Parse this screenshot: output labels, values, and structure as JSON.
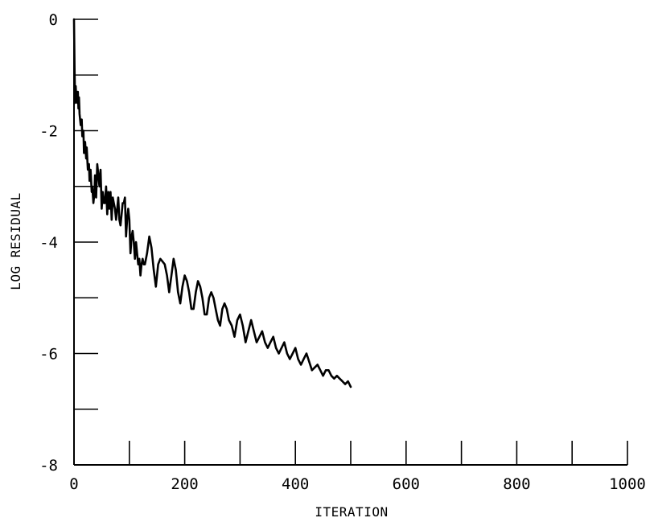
{
  "chart_data": {
    "type": "line",
    "title": "",
    "xlabel": "ITERATION",
    "ylabel": "LOG RESIDUAL",
    "xlim": [
      0,
      1000
    ],
    "ylim": [
      -8,
      0
    ],
    "grid": false,
    "x_ticks": [
      0,
      200,
      400,
      600,
      800,
      1000
    ],
    "x_tick_labels": [
      "0",
      "200",
      "400",
      "600",
      "800",
      "1000"
    ],
    "x_minor_ticks": [
      100,
      300,
      500,
      700,
      900
    ],
    "y_ticks": [
      0,
      -2,
      -4,
      -6,
      -8
    ],
    "y_tick_labels": [
      "0",
      "-2",
      "-4",
      "-6",
      "-8"
    ],
    "y_minor_ticks": [
      -1,
      -3,
      -5,
      -7
    ],
    "series": [
      {
        "color": "#000000",
        "x": [
          0,
          1,
          2,
          3,
          4,
          5,
          6,
          7,
          8,
          9,
          10,
          12,
          14,
          15,
          17,
          18,
          20,
          22,
          23,
          25,
          27,
          28,
          30,
          32,
          33,
          35,
          37,
          38,
          40,
          42,
          44,
          46,
          48,
          50,
          52,
          54,
          56,
          58,
          60,
          62,
          64,
          66,
          68,
          70,
          72,
          74,
          76,
          78,
          80,
          82,
          84,
          86,
          88,
          90,
          92,
          94,
          96,
          98,
          100,
          102,
          104,
          106,
          108,
          110,
          112,
          114,
          116,
          118,
          120,
          122,
          124,
          126,
          128,
          132,
          136,
          140,
          144,
          148,
          152,
          156,
          160,
          164,
          168,
          172,
          176,
          180,
          184,
          188,
          192,
          196,
          200,
          204,
          208,
          212,
          216,
          220,
          224,
          228,
          232,
          236,
          240,
          244,
          248,
          252,
          256,
          260,
          264,
          268,
          272,
          276,
          280,
          285,
          290,
          295,
          300,
          305,
          310,
          315,
          320,
          325,
          330,
          335,
          340,
          345,
          350,
          355,
          360,
          365,
          370,
          375,
          380,
          385,
          390,
          395,
          400,
          405,
          410,
          415,
          420,
          425,
          430,
          435,
          440,
          445,
          450,
          455,
          460,
          465,
          470,
          475,
          480,
          485,
          490,
          495,
          500
        ],
        "y": [
          0.0,
          -0.9,
          -1.5,
          -1.2,
          -1.4,
          -1.3,
          -1.5,
          -1.3,
          -1.6,
          -1.4,
          -1.7,
          -1.9,
          -1.8,
          -2.1,
          -2.0,
          -2.4,
          -2.2,
          -2.5,
          -2.3,
          -2.7,
          -2.6,
          -2.9,
          -2.7,
          -3.1,
          -3.0,
          -3.3,
          -3.1,
          -2.8,
          -3.2,
          -2.6,
          -2.8,
          -3.0,
          -2.7,
          -3.4,
          -3.1,
          -3.3,
          -3.3,
          -3.0,
          -3.5,
          -3.1,
          -3.4,
          -3.1,
          -3.6,
          -3.2,
          -3.3,
          -3.4,
          -3.6,
          -3.4,
          -3.2,
          -3.6,
          -3.7,
          -3.5,
          -3.3,
          -3.3,
          -3.2,
          -3.9,
          -3.6,
          -3.4,
          -3.6,
          -4.2,
          -3.9,
          -3.8,
          -4.0,
          -4.3,
          -4.0,
          -4.2,
          -4.4,
          -4.3,
          -4.6,
          -4.4,
          -4.3,
          -4.4,
          -4.4,
          -4.2,
          -3.9,
          -4.1,
          -4.5,
          -4.8,
          -4.4,
          -4.3,
          -4.35,
          -4.4,
          -4.6,
          -4.9,
          -4.6,
          -4.3,
          -4.5,
          -4.9,
          -5.1,
          -4.8,
          -4.6,
          -4.7,
          -4.9,
          -5.2,
          -5.2,
          -4.9,
          -4.7,
          -4.8,
          -5.0,
          -5.3,
          -5.3,
          -5.0,
          -4.9,
          -5.0,
          -5.2,
          -5.4,
          -5.5,
          -5.2,
          -5.1,
          -5.2,
          -5.4,
          -5.5,
          -5.7,
          -5.4,
          -5.3,
          -5.5,
          -5.8,
          -5.6,
          -5.4,
          -5.6,
          -5.8,
          -5.7,
          -5.6,
          -5.8,
          -5.9,
          -5.8,
          -5.7,
          -5.9,
          -6.0,
          -5.9,
          -5.8,
          -6.0,
          -6.1,
          -6.0,
          -5.9,
          -6.1,
          -6.2,
          -6.1,
          -6.0,
          -6.15,
          -6.3,
          -6.25,
          -6.2,
          -6.3,
          -6.4,
          -6.3,
          -6.3,
          -6.4,
          -6.45,
          -6.4,
          -6.45,
          -6.5,
          -6.55,
          -6.5,
          -6.6
        ]
      }
    ]
  }
}
